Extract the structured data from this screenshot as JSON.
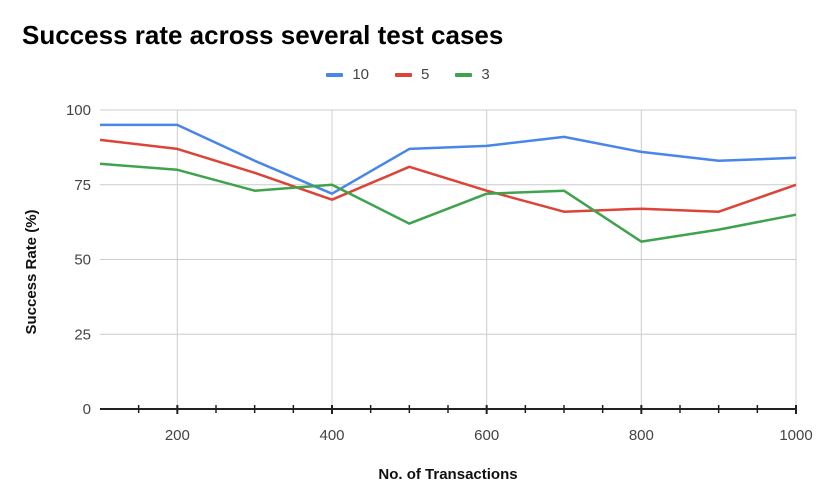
{
  "chart_data": {
    "type": "line",
    "title": "Success rate across several test cases",
    "xlabel": "No. of Transactions",
    "ylabel": "Success Rate (%)",
    "x": [
      100,
      200,
      300,
      400,
      500,
      600,
      700,
      800,
      900,
      1000
    ],
    "xlim": [
      100,
      1000
    ],
    "ylim": [
      0,
      100
    ],
    "x_ticks": [
      200,
      400,
      600,
      800,
      1000
    ],
    "y_ticks": [
      0,
      25,
      50,
      75,
      100
    ],
    "grid": true,
    "legend_position": "top-center",
    "series": [
      {
        "name": "10",
        "color": "#4a86e8",
        "values": [
          95,
          95,
          83,
          72,
          87,
          88,
          91,
          86,
          83,
          84
        ]
      },
      {
        "name": "5",
        "color": "#db4437",
        "values": [
          90,
          87,
          79,
          70,
          81,
          73,
          66,
          67,
          66,
          75
        ]
      },
      {
        "name": "3",
        "color": "#3fa34d",
        "values": [
          82,
          80,
          73,
          75,
          62,
          72,
          73,
          56,
          60,
          65
        ]
      }
    ]
  }
}
